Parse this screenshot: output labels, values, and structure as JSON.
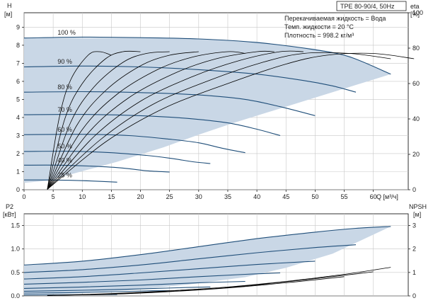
{
  "header": {
    "model": "TPE 80-90/4, 50Hz",
    "info_lines": [
      "Перекачиваемая жидкость = Вода",
      "Темп. жидкости = 20 °C",
      "Плотность = 998.2 кг/м³"
    ]
  },
  "colors": {
    "region_fill": "#c9d7e6",
    "speed_curve": "#1f4e79",
    "eta_curve": "#000000",
    "grid": "#c8c8c8",
    "axis": "#000000"
  },
  "chart_data": [
    {
      "id": "head",
      "type": "line",
      "xlabel": "Q [м³/ч]",
      "ylabel_left": "H",
      "ylabel_left_unit": "[м]",
      "ylabel_right": "eta",
      "ylabel_right_unit": "[%]",
      "xlim": [
        0,
        66
      ],
      "ylim": [
        0,
        9.8
      ],
      "x_ticks": [
        0,
        5,
        10,
        15,
        20,
        25,
        30,
        35,
        40,
        45,
        50,
        55,
        60
      ],
      "y_ticks": [
        0,
        1,
        2,
        3,
        4,
        5,
        6,
        7,
        8,
        9
      ],
      "eta_ticks": [
        0,
        20,
        40,
        60,
        80,
        100
      ],
      "eta_ylim": [
        0,
        100
      ],
      "grid": true,
      "operating_region": [
        [
          0,
          8.4
        ],
        [
          10,
          8.4
        ],
        [
          20,
          8.4
        ],
        [
          30,
          8.37
        ],
        [
          40,
          8.2
        ],
        [
          50,
          7.8
        ],
        [
          56,
          7.4
        ],
        [
          63,
          6.4
        ],
        [
          56,
          5.7
        ],
        [
          48,
          4.9
        ],
        [
          42,
          4.3
        ],
        [
          36,
          3.7
        ],
        [
          30,
          3.05
        ],
        [
          24,
          2.35
        ],
        [
          16,
          1.55
        ],
        [
          4,
          0.5
        ],
        [
          0,
          0.38
        ]
      ],
      "series": [
        {
          "name": "100 %",
          "points": [
            [
              0,
              8.4
            ],
            [
              10,
              8.45
            ],
            [
              20,
              8.42
            ],
            [
              30,
              8.35
            ],
            [
              40,
              8.15
            ],
            [
              50,
              7.75
            ],
            [
              56,
              7.35
            ],
            [
              63,
              6.4
            ]
          ]
        },
        {
          "name": "90 %",
          "points": [
            [
              0,
              6.8
            ],
            [
              10,
              6.85
            ],
            [
              20,
              6.8
            ],
            [
              30,
              6.65
            ],
            [
              40,
              6.4
            ],
            [
              48,
              6.05
            ],
            [
              53,
              5.75
            ],
            [
              57,
              5.4
            ]
          ]
        },
        {
          "name": "80 %",
          "points": [
            [
              0,
              5.4
            ],
            [
              10,
              5.43
            ],
            [
              20,
              5.38
            ],
            [
              30,
              5.25
            ],
            [
              38,
              5.0
            ],
            [
              44,
              4.6
            ],
            [
              50,
              4.1
            ]
          ]
        },
        {
          "name": "70 %",
          "points": [
            [
              0,
              4.15
            ],
            [
              10,
              4.17
            ],
            [
              20,
              4.1
            ],
            [
              28,
              3.95
            ],
            [
              35,
              3.7
            ],
            [
              40,
              3.35
            ],
            [
              44,
              3.0
            ]
          ]
        },
        {
          "name": "60 %",
          "points": [
            [
              0,
              3.05
            ],
            [
              10,
              3.07
            ],
            [
              18,
              3.0
            ],
            [
              25,
              2.8
            ],
            [
              30,
              2.6
            ],
            [
              34,
              2.3
            ],
            [
              38,
              2.05
            ]
          ]
        },
        {
          "name": "50 %",
          "points": [
            [
              0,
              2.12
            ],
            [
              8,
              2.13
            ],
            [
              15,
              2.05
            ],
            [
              21,
              1.9
            ],
            [
              25,
              1.75
            ],
            [
              29,
              1.55
            ],
            [
              32,
              1.45
            ]
          ]
        },
        {
          "name": "40 %",
          "points": [
            [
              0,
              1.36
            ],
            [
              6,
              1.36
            ],
            [
              12,
              1.3
            ],
            [
              17,
              1.2
            ],
            [
              21,
              1.05
            ],
            [
              25,
              0.98
            ]
          ]
        },
        {
          "name": "25 %",
          "points": [
            [
              0,
              0.54
            ],
            [
              4,
              0.54
            ],
            [
              8,
              0.52
            ],
            [
              12,
              0.48
            ],
            [
              16,
              0.42
            ]
          ]
        }
      ],
      "eta_curves": [
        [
          [
            4,
            0.2
          ],
          [
            6,
            40
          ],
          [
            8,
            62
          ],
          [
            11,
            76
          ],
          [
            13,
            78
          ],
          [
            15,
            76
          ]
        ],
        [
          [
            4,
            0.2
          ],
          [
            7,
            40
          ],
          [
            10,
            60
          ],
          [
            14,
            74
          ],
          [
            17,
            78
          ],
          [
            20,
            78
          ]
        ],
        [
          [
            4,
            0.2
          ],
          [
            8,
            38
          ],
          [
            12,
            58
          ],
          [
            17,
            72
          ],
          [
            21,
            77
          ],
          [
            25,
            78
          ]
        ],
        [
          [
            4,
            0.2
          ],
          [
            9,
            36
          ],
          [
            14,
            56
          ],
          [
            20,
            70
          ],
          [
            25,
            76
          ],
          [
            30,
            78
          ]
        ],
        [
          [
            4,
            0.2
          ],
          [
            10,
            34
          ],
          [
            16,
            54
          ],
          [
            23,
            68
          ],
          [
            29,
            75
          ],
          [
            35,
            78
          ],
          [
            38,
            77
          ]
        ],
        [
          [
            4,
            0.2
          ],
          [
            11,
            32
          ],
          [
            18,
            52
          ],
          [
            26,
            66
          ],
          [
            33,
            74
          ],
          [
            40,
            78
          ],
          [
            43,
            78
          ]
        ],
        [
          [
            4,
            0.2
          ],
          [
            12,
            30
          ],
          [
            20,
            50
          ],
          [
            29,
            64
          ],
          [
            37,
            73
          ],
          [
            44,
            78
          ],
          [
            48,
            78
          ]
        ],
        [
          [
            4,
            0.2
          ],
          [
            13,
            28
          ],
          [
            22,
            48
          ],
          [
            32,
            62
          ],
          [
            41,
            72
          ],
          [
            48,
            77
          ],
          [
            56,
            77
          ],
          [
            63,
            74
          ]
        ],
        [
          [
            4,
            0.2
          ],
          [
            14,
            27
          ],
          [
            24,
            46
          ],
          [
            35,
            60
          ],
          [
            45,
            71
          ],
          [
            52,
            76
          ],
          [
            60,
            77
          ],
          [
            67,
            74
          ]
        ]
      ]
    },
    {
      "id": "power",
      "type": "line",
      "ylabel_left": "P2",
      "ylabel_left_unit": "[кВт]",
      "ylabel_right": "NPSH",
      "ylabel_right_unit": "[м]",
      "xlim": [
        0,
        66
      ],
      "ylim": [
        0,
        1.75
      ],
      "y_ticks": [
        0,
        0.5,
        1.0,
        1.5
      ],
      "y_tick_labels": [
        "0.0",
        "0.5",
        "1.0",
        "1.5"
      ],
      "npsh_ticks": [
        0,
        1,
        2,
        3
      ],
      "npsh_ylim": [
        0,
        3.5
      ],
      "grid": true,
      "operating_region": [
        [
          0,
          0.66
        ],
        [
          10,
          0.74
        ],
        [
          20,
          0.88
        ],
        [
          30,
          1.05
        ],
        [
          40,
          1.22
        ],
        [
          50,
          1.36
        ],
        [
          57,
          1.44
        ],
        [
          63,
          1.48
        ],
        [
          53,
          0.9
        ],
        [
          45,
          0.6
        ],
        [
          38,
          0.4
        ],
        [
          28,
          0.24
        ],
        [
          18,
          0.12
        ],
        [
          8,
          0.05
        ],
        [
          0,
          0.03
        ]
      ],
      "series": [
        {
          "name": "100 %",
          "points": [
            [
              0,
              0.66
            ],
            [
              10,
              0.74
            ],
            [
              20,
              0.88
            ],
            [
              30,
              1.05
            ],
            [
              40,
              1.22
            ],
            [
              50,
              1.36
            ],
            [
              57,
              1.44
            ],
            [
              63,
              1.48
            ]
          ]
        },
        {
          "name": "90 %",
          "points": [
            [
              0,
              0.5
            ],
            [
              10,
              0.56
            ],
            [
              20,
              0.66
            ],
            [
              30,
              0.79
            ],
            [
              40,
              0.92
            ],
            [
              50,
              1.03
            ],
            [
              57,
              1.09
            ]
          ]
        },
        {
          "name": "80 %",
          "points": [
            [
              0,
              0.36
            ],
            [
              10,
              0.41
            ],
            [
              20,
              0.49
            ],
            [
              30,
              0.58
            ],
            [
              40,
              0.67
            ],
            [
              50,
              0.74
            ]
          ]
        },
        {
          "name": "70 %",
          "points": [
            [
              0,
              0.25
            ],
            [
              10,
              0.29
            ],
            [
              20,
              0.34
            ],
            [
              30,
              0.41
            ],
            [
              38,
              0.46
            ],
            [
              44,
              0.49
            ]
          ]
        },
        {
          "name": "60 %",
          "points": [
            [
              0,
              0.16
            ],
            [
              10,
              0.19
            ],
            [
              20,
              0.23
            ],
            [
              30,
              0.28
            ],
            [
              38,
              0.31
            ]
          ]
        },
        {
          "name": "50 %",
          "points": [
            [
              0,
              0.1
            ],
            [
              10,
              0.12
            ],
            [
              20,
              0.15
            ],
            [
              28,
              0.18
            ],
            [
              32,
              0.19
            ]
          ]
        },
        {
          "name": "40 %",
          "points": [
            [
              0,
              0.06
            ],
            [
              8,
              0.07
            ],
            [
              16,
              0.09
            ],
            [
              22,
              0.11
            ],
            [
              25,
              0.11
            ]
          ]
        },
        {
          "name": "25 %",
          "points": [
            [
              0,
              0.02
            ],
            [
              8,
              0.025
            ],
            [
              16,
              0.03
            ]
          ]
        }
      ],
      "npsh_curves": [
        [
          [
            4,
            0.02
          ],
          [
            15,
            0.1
          ],
          [
            25,
            0.22
          ],
          [
            35,
            0.38
          ],
          [
            45,
            0.62
          ],
          [
            55,
            0.92
          ],
          [
            63,
            1.22
          ]
        ],
        [
          [
            4,
            0.02
          ],
          [
            15,
            0.08
          ],
          [
            25,
            0.2
          ],
          [
            35,
            0.36
          ],
          [
            45,
            0.6
          ],
          [
            55,
            0.88
          ],
          [
            60,
            1.03
          ]
        ],
        [
          [
            4,
            0.02
          ],
          [
            15,
            0.07
          ],
          [
            25,
            0.18
          ],
          [
            35,
            0.34
          ],
          [
            45,
            0.56
          ],
          [
            55,
            0.82
          ]
        ]
      ]
    }
  ]
}
